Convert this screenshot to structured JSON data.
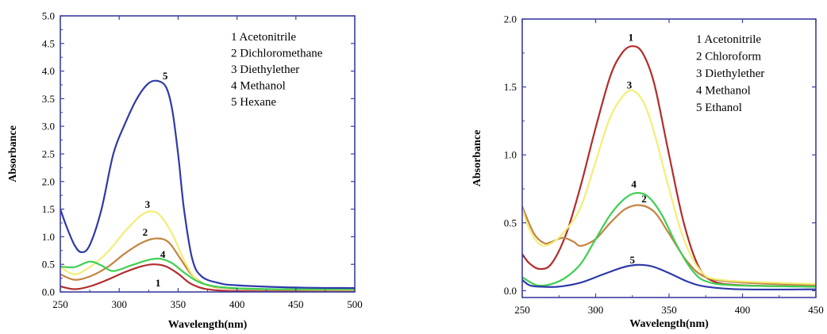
{
  "colors": {
    "frame": "#3b3fa0",
    "s1": "#b22c2c",
    "s2": "#c38442",
    "s3": "#f2ee77",
    "s4": "#3fcf52",
    "s5": "#2e3aa8"
  },
  "chart_data": [
    {
      "type": "line",
      "title": "",
      "xlabel": "Wavelength(nm)",
      "ylabel": "Absorbance",
      "xlim": [
        250,
        500
      ],
      "ylim": [
        0,
        5.0
      ],
      "xticks": [
        250,
        300,
        350,
        400,
        450,
        500
      ],
      "xtick_labels": [
        "250",
        "300",
        "350",
        "400",
        "450",
        "500"
      ],
      "yticks": [
        0,
        0.5,
        1.0,
        1.5,
        2.0,
        2.5,
        3.0,
        3.5,
        4.0,
        4.5,
        5.0
      ],
      "ytick_labels": [
        "0.0",
        "0.5",
        "1.0",
        "1.5",
        "2.0",
        "2.5",
        "3.0",
        "3.5",
        "4.0",
        "4.5",
        "5.0"
      ],
      "legend": [
        "1  Acetonitrile",
        "2  Dichloromethane",
        "3  Diethylether",
        "4  Methanol",
        "5  Hexane"
      ],
      "legend_position": "top-right",
      "series": [
        {
          "id": "1",
          "label": "1",
          "label_at": [
            333,
            0.1
          ],
          "color_key": "s1",
          "points": [
            [
              250,
              0.1
            ],
            [
              262,
              0.05
            ],
            [
              275,
              0.1
            ],
            [
              290,
              0.22
            ],
            [
              305,
              0.36
            ],
            [
              320,
              0.47
            ],
            [
              330,
              0.5
            ],
            [
              340,
              0.46
            ],
            [
              350,
              0.33
            ],
            [
              360,
              0.16
            ],
            [
              372,
              0.06
            ],
            [
              390,
              0.02
            ],
            [
              420,
              0.01
            ],
            [
              500,
              0.01
            ]
          ]
        },
        {
          "id": "2",
          "label": "2",
          "label_at": [
            322,
            1.02
          ],
          "color_key": "s2",
          "points": [
            [
              250,
              0.32
            ],
            [
              262,
              0.22
            ],
            [
              275,
              0.28
            ],
            [
              290,
              0.45
            ],
            [
              305,
              0.7
            ],
            [
              320,
              0.9
            ],
            [
              332,
              0.97
            ],
            [
              342,
              0.9
            ],
            [
              352,
              0.6
            ],
            [
              362,
              0.3
            ],
            [
              375,
              0.12
            ],
            [
              395,
              0.06
            ],
            [
              430,
              0.04
            ],
            [
              500,
              0.03
            ]
          ]
        },
        {
          "id": "3",
          "label": "3",
          "label_at": [
            324,
            1.52
          ],
          "color_key": "s3",
          "points": [
            [
              250,
              0.45
            ],
            [
              262,
              0.32
            ],
            [
              275,
              0.45
            ],
            [
              290,
              0.72
            ],
            [
              305,
              1.1
            ],
            [
              318,
              1.38
            ],
            [
              327,
              1.46
            ],
            [
              335,
              1.38
            ],
            [
              345,
              1.05
            ],
            [
              355,
              0.58
            ],
            [
              365,
              0.24
            ],
            [
              380,
              0.1
            ],
            [
              420,
              0.05
            ],
            [
              500,
              0.04
            ]
          ]
        },
        {
          "id": "4",
          "label": "4",
          "label_at": [
            337,
            0.62
          ],
          "color_key": "s4",
          "points": [
            [
              250,
              0.46
            ],
            [
              262,
              0.45
            ],
            [
              275,
              0.55
            ],
            [
              285,
              0.48
            ],
            [
              295,
              0.38
            ],
            [
              310,
              0.48
            ],
            [
              325,
              0.58
            ],
            [
              335,
              0.6
            ],
            [
              345,
              0.52
            ],
            [
              357,
              0.32
            ],
            [
              370,
              0.16
            ],
            [
              390,
              0.08
            ],
            [
              430,
              0.05
            ],
            [
              500,
              0.05
            ]
          ]
        },
        {
          "id": "5",
          "label": "5",
          "label_at": [
            339,
            3.85
          ],
          "color_key": "s5",
          "points": [
            [
              250,
              1.5
            ],
            [
              255,
              1.2
            ],
            [
              262,
              0.85
            ],
            [
              268,
              0.72
            ],
            [
              275,
              0.85
            ],
            [
              285,
              1.5
            ],
            [
              295,
              2.5
            ],
            [
              305,
              3.05
            ],
            [
              315,
              3.5
            ],
            [
              325,
              3.78
            ],
            [
              333,
              3.82
            ],
            [
              340,
              3.7
            ],
            [
              345,
              3.3
            ],
            [
              350,
              2.5
            ],
            [
              355,
              1.5
            ],
            [
              362,
              0.6
            ],
            [
              370,
              0.28
            ],
            [
              385,
              0.16
            ],
            [
              400,
              0.12
            ],
            [
              450,
              0.08
            ],
            [
              500,
              0.07
            ]
          ]
        }
      ]
    },
    {
      "type": "line",
      "title": "",
      "xlabel": "Wavelength(nm)",
      "ylabel": "Absorbance",
      "xlim": [
        250,
        450
      ],
      "ylim": [
        -0.05,
        2.0
      ],
      "xticks": [
        250,
        300,
        350,
        400,
        450
      ],
      "xtick_labels": [
        "250",
        "300",
        "350",
        "400",
        "450"
      ],
      "yticks": [
        0,
        0.5,
        1.0,
        1.5,
        2.0
      ],
      "ytick_labels": [
        "0.0",
        "0.5",
        "1.0",
        "1.5",
        "2.0"
      ],
      "legend": [
        "1  Acetonitrile",
        "2  Chloroform",
        "3  Diethylether",
        "4  Methanol",
        "5  Ethanol"
      ],
      "legend_position": "top-right",
      "series": [
        {
          "id": "1",
          "label": "1",
          "label_at": [
            324,
            1.84
          ],
          "color_key": "s1",
          "points": [
            [
              250,
              0.27
            ],
            [
              255,
              0.2
            ],
            [
              262,
              0.16
            ],
            [
              270,
              0.2
            ],
            [
              280,
              0.42
            ],
            [
              290,
              0.78
            ],
            [
              300,
              1.2
            ],
            [
              310,
              1.58
            ],
            [
              318,
              1.75
            ],
            [
              325,
              1.8
            ],
            [
              332,
              1.75
            ],
            [
              340,
              1.52
            ],
            [
              350,
              1.0
            ],
            [
              360,
              0.5
            ],
            [
              370,
              0.18
            ],
            [
              380,
              0.07
            ],
            [
              400,
              0.04
            ],
            [
              450,
              0.03
            ]
          ]
        },
        {
          "id": "2",
          "label": "2",
          "label_at": [
            333,
            0.65
          ],
          "color_key": "s2",
          "points": [
            [
              250,
              0.62
            ],
            [
              258,
              0.42
            ],
            [
              265,
              0.35
            ],
            [
              270,
              0.36
            ],
            [
              278,
              0.39
            ],
            [
              285,
              0.36
            ],
            [
              290,
              0.33
            ],
            [
              300,
              0.38
            ],
            [
              310,
              0.5
            ],
            [
              320,
              0.6
            ],
            [
              330,
              0.63
            ],
            [
              340,
              0.58
            ],
            [
              350,
              0.42
            ],
            [
              362,
              0.22
            ],
            [
              375,
              0.1
            ],
            [
              400,
              0.06
            ],
            [
              450,
              0.04
            ]
          ]
        },
        {
          "id": "3",
          "label": "3",
          "label_at": [
            323,
            1.49
          ],
          "color_key": "s3",
          "points": [
            [
              250,
              0.6
            ],
            [
              255,
              0.45
            ],
            [
              262,
              0.34
            ],
            [
              270,
              0.35
            ],
            [
              280,
              0.45
            ],
            [
              290,
              0.62
            ],
            [
              300,
              0.95
            ],
            [
              310,
              1.28
            ],
            [
              320,
              1.45
            ],
            [
              326,
              1.47
            ],
            [
              333,
              1.38
            ],
            [
              340,
              1.16
            ],
            [
              350,
              0.75
            ],
            [
              360,
              0.38
            ],
            [
              372,
              0.14
            ],
            [
              385,
              0.08
            ],
            [
              420,
              0.06
            ],
            [
              450,
              0.05
            ]
          ]
        },
        {
          "id": "4",
          "label": "4",
          "label_at": [
            326,
            0.76
          ],
          "color_key": "s4",
          "points": [
            [
              250,
              0.1
            ],
            [
              260,
              0.04
            ],
            [
              270,
              0.05
            ],
            [
              280,
              0.1
            ],
            [
              290,
              0.2
            ],
            [
              300,
              0.38
            ],
            [
              310,
              0.56
            ],
            [
              320,
              0.68
            ],
            [
              328,
              0.72
            ],
            [
              336,
              0.69
            ],
            [
              345,
              0.56
            ],
            [
              355,
              0.34
            ],
            [
              365,
              0.16
            ],
            [
              375,
              0.07
            ],
            [
              395,
              0.04
            ],
            [
              450,
              0.03
            ]
          ]
        },
        {
          "id": "5",
          "label": "5",
          "label_at": [
            325,
            0.2
          ],
          "color_key": "s5",
          "points": [
            [
              250,
              0.08
            ],
            [
              255,
              0.04
            ],
            [
              262,
              0.03
            ],
            [
              275,
              0.03
            ],
            [
              290,
              0.06
            ],
            [
              305,
              0.12
            ],
            [
              318,
              0.17
            ],
            [
              328,
              0.19
            ],
            [
              338,
              0.18
            ],
            [
              350,
              0.13
            ],
            [
              362,
              0.07
            ],
            [
              375,
              0.03
            ],
            [
              400,
              0.01
            ],
            [
              450,
              0.01
            ]
          ]
        }
      ]
    }
  ]
}
